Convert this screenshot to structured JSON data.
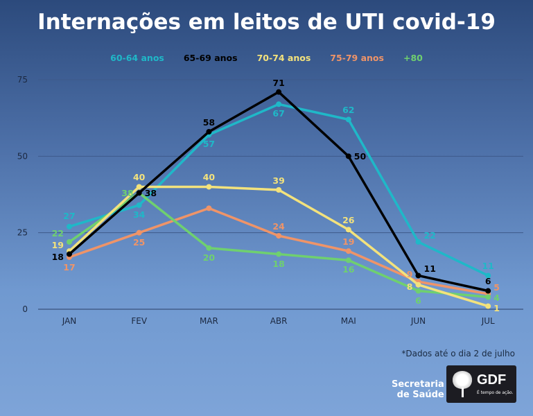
{
  "chart_data": {
    "type": "line",
    "title": "Internações em leitos de UTI covid-19",
    "categories": [
      "JAN",
      "FEV",
      "MAR",
      "ABR",
      "MAI",
      "JUN",
      "JUL"
    ],
    "ylim": [
      0,
      75
    ],
    "yticks": [
      0,
      25,
      50,
      75
    ],
    "grid": true,
    "legend_placement": "top-center",
    "series": [
      {
        "name": "60-64 anos",
        "color": "#1fb8c8",
        "values": [
          27,
          34,
          57,
          67,
          62,
          22,
          11
        ],
        "labels": [
          "27",
          "34",
          "57",
          "67",
          "62",
          "22",
          "11"
        ]
      },
      {
        "name": "65-69 anos",
        "color": "#000000",
        "values": [
          18,
          38,
          58,
          71,
          50,
          11,
          6
        ],
        "labels": [
          "18",
          "38",
          "58",
          "71",
          "50",
          "11",
          "6"
        ]
      },
      {
        "name": "70-74 anos",
        "color": "#f3e27c",
        "values": [
          19,
          40,
          40,
          39,
          26,
          8,
          1
        ],
        "labels": [
          "19",
          "40",
          "40",
          "39",
          "26",
          "8",
          "1"
        ]
      },
      {
        "name": "75-79 anos",
        "color": "#ef9468",
        "values": [
          17,
          25,
          33,
          24,
          19,
          9,
          5
        ],
        "labels": [
          "17",
          "25",
          null,
          "24",
          "19",
          "9",
          "5"
        ]
      },
      {
        "name": "+80",
        "color": "#6fd06f",
        "values": [
          22,
          38,
          20,
          18,
          16,
          6,
          4
        ],
        "labels": [
          "22",
          "38",
          "20",
          "18",
          "16",
          "6",
          "4"
        ]
      }
    ],
    "note": "*Dados até o dia 2 de julho"
  },
  "footer": {
    "org_line1": "Secretaria",
    "org_line2": "de Saúde",
    "logo_text": "GDF",
    "logo_slogan": "É tempo de ação."
  }
}
